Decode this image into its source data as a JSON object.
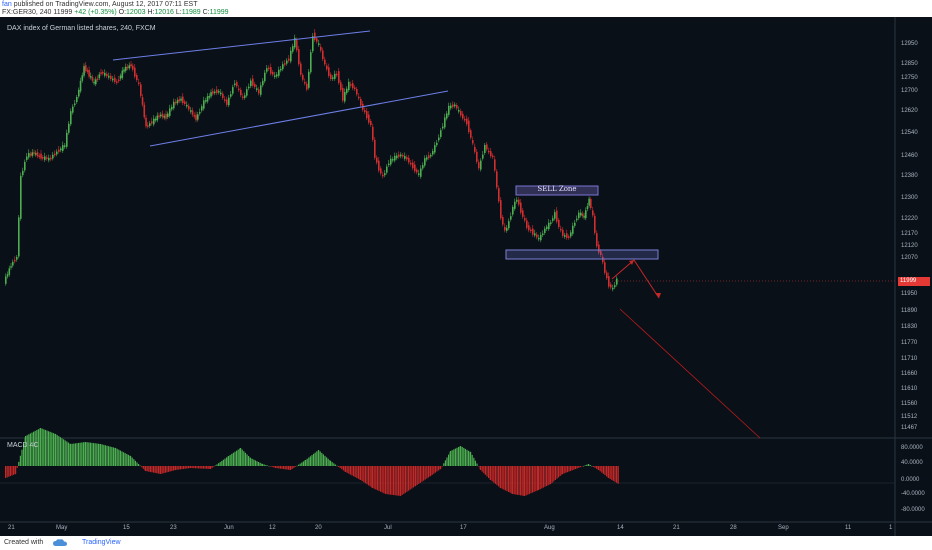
{
  "header": {
    "author": "fan",
    "published_text": "published on TradingView.com, August 12, 2017 07:11 EST",
    "symbol_line": "FX:GER30, 240  11999",
    "change": "+42 (+0.35%)",
    "o_label": "O:",
    "o_value": "12003",
    "h_label": "H:",
    "h_value": "12016",
    "l_label": "L:",
    "l_value": "11989",
    "c_label": "C:",
    "c_value": "11999"
  },
  "chart": {
    "title": "DAX index of German listed shares, 240, FXCM",
    "current_price": "11999",
    "sell_zone_label": "SELL Zone",
    "price_axis": [
      "12950",
      "12850",
      "12750",
      "12700",
      "12620",
      "12540",
      "12460",
      "12380",
      "12300",
      "12220",
      "12170",
      "12120",
      "12070",
      "11950",
      "11890",
      "11830",
      "11770",
      "11710",
      "11660",
      "11610",
      "11560",
      "11512",
      "11467"
    ],
    "time_axis": [
      "21",
      "May",
      "15",
      "23",
      "Jun",
      "12",
      "20",
      "Jul",
      "17",
      "Aug",
      "14",
      "21",
      "28",
      "Sep",
      "11",
      "1"
    ],
    "colors": {
      "background": "#0a1018",
      "bull": "#4caf50",
      "bear": "#d32f2f",
      "channel": "#6d7fe8",
      "projection": "#c62828"
    }
  },
  "macd": {
    "title": "MACD 4C",
    "axis": [
      "80.0000",
      "40.0000",
      "0.0000",
      "-40.0000",
      "-80.0000"
    ]
  },
  "footer": {
    "created_with": "Created with",
    "brand": "TradingView"
  }
}
